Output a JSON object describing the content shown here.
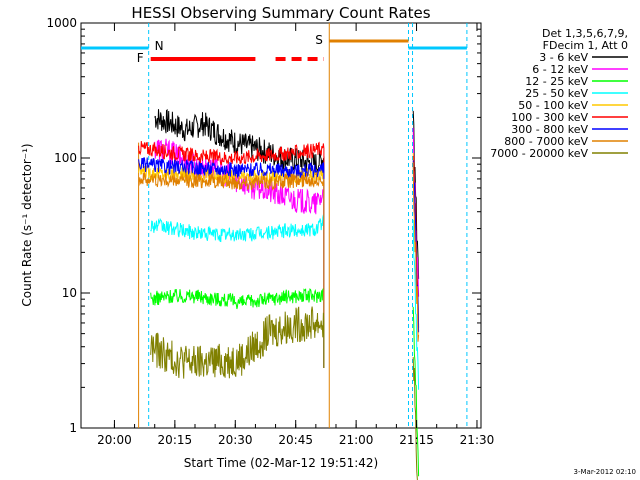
{
  "chart_data": {
    "type": "line",
    "title": "HESSI Observing Summary Count Rates",
    "xlabel": "Start Time (02-Mar-12 19:51:42)",
    "ylabel": "Count Rate (s⁻¹ detector⁻¹)",
    "ylim": [
      1,
      1000
    ],
    "y_scale": "log",
    "xlim": [
      "19:51:42",
      "21:31:00"
    ],
    "x_ticks": [
      "20:00",
      "20:15",
      "20:30",
      "20:45",
      "21:00",
      "21:15",
      "21:30"
    ],
    "y_ticks": [
      "1",
      "10",
      "100",
      "1000"
    ],
    "grid": false,
    "legend_position": "right",
    "legend_header": [
      "Det 1,3,5,6,7,9,",
      "FDecim 1, Att 0"
    ],
    "series": [
      {
        "name": "3 - 6 keV",
        "color": "#000000",
        "x": [
          "20:10",
          "20:14",
          "20:18",
          "20:22",
          "20:26",
          "20:30",
          "20:34",
          "20:38",
          "20:42",
          "20:46",
          "20:50",
          "20:52"
        ],
        "y": [
          200,
          180,
          160,
          180,
          150,
          130,
          120,
          110,
          100,
          95,
          90,
          100
        ]
      },
      {
        "name": "6 - 12 keV",
        "color": "#ff00ff",
        "x": [
          "20:10",
          "20:14",
          "20:18",
          "20:22",
          "20:26",
          "20:30",
          "20:34",
          "20:38",
          "20:42",
          "20:46",
          "20:50",
          "20:52"
        ],
        "y": [
          120,
          110,
          95,
          85,
          80,
          70,
          62,
          57,
          52,
          48,
          45,
          55
        ]
      },
      {
        "name": "12 - 25 keV",
        "color": "#00ff00",
        "x": [
          "20:09",
          "20:14",
          "20:20",
          "20:26",
          "20:32",
          "20:38",
          "20:44",
          "20:50",
          "20:52"
        ],
        "y": [
          9,
          9.5,
          9.5,
          9,
          8.5,
          9,
          9.5,
          9.5,
          10
        ]
      },
      {
        "name": "25 - 50 keV",
        "color": "#00ffff",
        "x": [
          "20:09",
          "20:14",
          "20:20",
          "20:26",
          "20:32",
          "20:38",
          "20:44",
          "20:50",
          "20:52"
        ],
        "y": [
          32,
          30,
          28,
          27,
          27,
          28,
          29,
          30,
          34
        ]
      },
      {
        "name": "50 - 100 keV",
        "color": "#ffc800",
        "x": [
          "20:06",
          "20:14",
          "20:22",
          "20:30",
          "20:38",
          "20:46",
          "20:52"
        ],
        "y": [
          80,
          76,
          74,
          72,
          72,
          74,
          76
        ]
      },
      {
        "name": "100 - 300 keV",
        "color": "#ff0000",
        "x": [
          "20:06",
          "20:14",
          "20:22",
          "20:30",
          "20:38",
          "20:46",
          "20:52"
        ],
        "y": [
          120,
          110,
          102,
          100,
          105,
          110,
          118
        ]
      },
      {
        "name": "300 - 800 keV",
        "color": "#0000ff",
        "x": [
          "20:06",
          "20:14",
          "20:22",
          "20:30",
          "20:38",
          "20:46",
          "20:52"
        ],
        "y": [
          90,
          86,
          84,
          82,
          82,
          80,
          82
        ]
      },
      {
        "name": "800 - 7000 keV",
        "color": "#e08000",
        "x": [
          "20:06",
          "20:14",
          "20:22",
          "20:30",
          "20:38",
          "20:46",
          "20:52"
        ],
        "y": [
          70,
          68,
          68,
          66,
          66,
          68,
          70
        ]
      },
      {
        "name": "7000 - 20000 keV",
        "color": "#808000",
        "x": [
          "20:09",
          "20:14",
          "20:20",
          "20:26",
          "20:32",
          "20:38",
          "20:44",
          "20:50",
          "20:52"
        ],
        "y": [
          4,
          3.3,
          3.0,
          3.1,
          3.3,
          5,
          5.8,
          6,
          6
        ]
      }
    ],
    "annotations": [
      {
        "label": "N",
        "color": "#00c8ff"
      },
      {
        "label": "F",
        "color": "#ff0000"
      },
      {
        "label": "S",
        "color": "#e08000"
      }
    ],
    "timestamp": "3-Mar-2012 02:10"
  }
}
